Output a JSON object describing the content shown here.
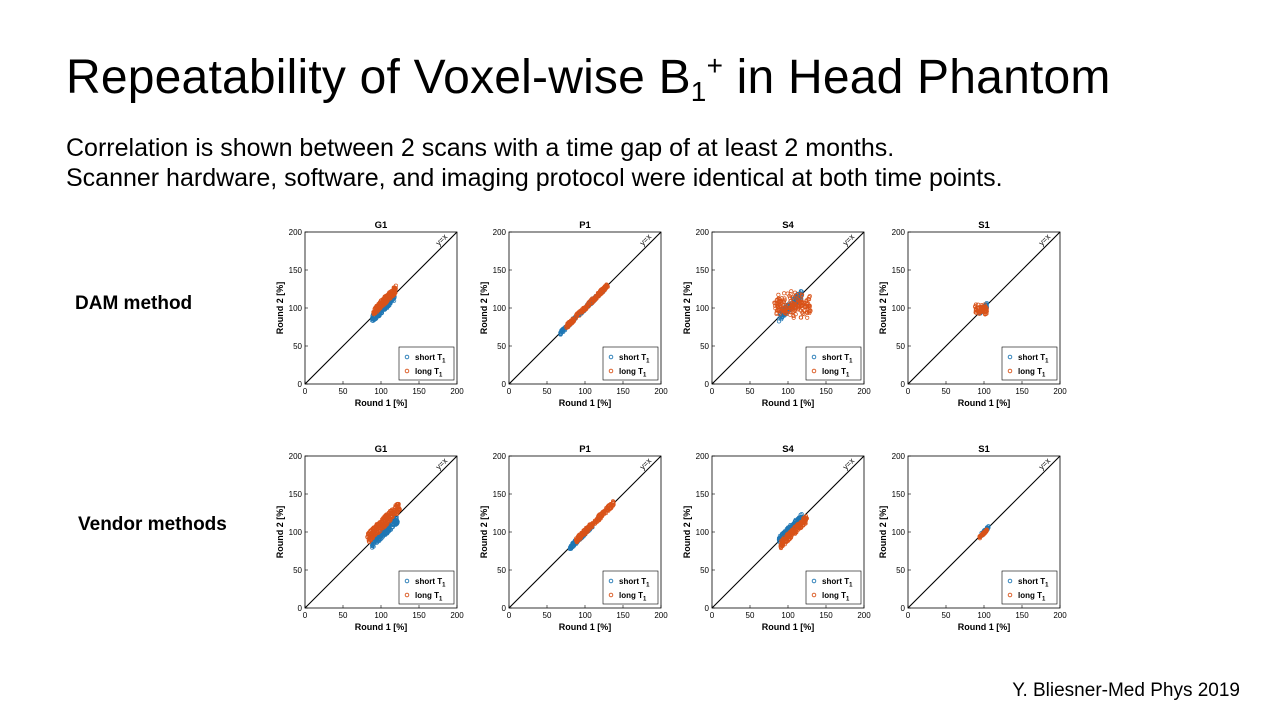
{
  "slide": {
    "title_main": "Repeatability of Voxel-wise B",
    "title_sub": "1",
    "title_sup": "+",
    "title_rest": " in Head Phantom",
    "subtitle_line1": "Correlation is shown between 2 scans with a time gap of at least 2 months.",
    "subtitle_line2": "Scanner hardware, software, and imaging protocol were identical at both time points.",
    "row_labels": [
      "DAM method",
      "Vendor methods"
    ],
    "citation": "Y. Bliesner-Med Phys 2019"
  },
  "colors": {
    "short_T1": "#1f77b4",
    "long_T1": "#d95319",
    "identity_line": "#000000"
  },
  "chart_data": [
    {
      "type": "scatter",
      "row": "DAM method",
      "title": "G1",
      "xlabel": "Round 1 [%]",
      "ylabel": "Round 2 [%]",
      "xlim": [
        0,
        200
      ],
      "ylim": [
        0,
        200
      ],
      "xticks": [
        0,
        50,
        100,
        150,
        200
      ],
      "yticks": [
        0,
        50,
        100,
        150,
        200
      ],
      "annotation": "y=x",
      "legend": {
        "placement": "bottom-right",
        "entries": [
          {
            "label": "short T",
            "sub": "1"
          },
          {
            "label": "long T",
            "sub": "1"
          }
        ]
      },
      "series": [
        {
          "name": "short T1",
          "x_range": [
            88,
            118
          ],
          "band": [
            -8,
            2
          ],
          "count": 180
        },
        {
          "name": "long T1",
          "x_range": [
            90,
            120
          ],
          "band": [
            0,
            10
          ],
          "count": 180
        }
      ]
    },
    {
      "type": "scatter",
      "row": "DAM method",
      "title": "P1",
      "xlabel": "Round 1 [%]",
      "ylabel": "Round 2 [%]",
      "xlim": [
        0,
        200
      ],
      "ylim": [
        0,
        200
      ],
      "xticks": [
        0,
        50,
        100,
        150,
        200
      ],
      "yticks": [
        0,
        50,
        100,
        150,
        200
      ],
      "annotation": "y=x",
      "legend": {
        "placement": "bottom-right",
        "entries": [
          {
            "label": "short T",
            "sub": "1"
          },
          {
            "label": "long T",
            "sub": "1"
          }
        ]
      },
      "series": [
        {
          "name": "short T1",
          "x_range": [
            67,
            128
          ],
          "band": [
            -3,
            2
          ],
          "count": 160
        },
        {
          "name": "long T1",
          "x_range": [
            75,
            130
          ],
          "band": [
            -3,
            3
          ],
          "count": 180
        }
      ]
    },
    {
      "type": "scatter",
      "row": "DAM method",
      "title": "S4",
      "xlabel": "Round 1 [%]",
      "ylabel": "Round 2 [%]",
      "xlim": [
        0,
        200
      ],
      "ylim": [
        0,
        200
      ],
      "xticks": [
        0,
        50,
        100,
        150,
        200
      ],
      "yticks": [
        0,
        50,
        100,
        150,
        200
      ],
      "annotation": "y=x",
      "legend": {
        "placement": "bottom-right",
        "entries": [
          {
            "label": "short T",
            "sub": "1"
          },
          {
            "label": "long T",
            "sub": "1"
          }
        ]
      },
      "series": [
        {
          "name": "short T1",
          "x_range": [
            88,
            118
          ],
          "band": [
            -6,
            6
          ],
          "count": 120
        },
        {
          "name": "long T1",
          "x_range": [
            82,
            130
          ],
          "center_y": 103,
          "y_spread": 22,
          "count": 170
        }
      ]
    },
    {
      "type": "scatter",
      "row": "DAM method",
      "title": "S1",
      "xlabel": "Round 1 [%]",
      "ylabel": "Round 2 [%]",
      "xlim": [
        0,
        200
      ],
      "ylim": [
        0,
        200
      ],
      "xticks": [
        0,
        50,
        100,
        150,
        200
      ],
      "yticks": [
        0,
        50,
        100,
        150,
        200
      ],
      "annotation": "y=x",
      "legend": {
        "placement": "bottom-right",
        "entries": [
          {
            "label": "short T",
            "sub": "1"
          },
          {
            "label": "long T",
            "sub": "1"
          }
        ]
      },
      "series": [
        {
          "name": "short T1",
          "x_range": [
            94,
            104
          ],
          "band": [
            -3,
            3
          ],
          "count": 40
        },
        {
          "name": "long T1",
          "x_range": [
            88,
            104
          ],
          "center_y": 97,
          "y_spread": 10,
          "count": 60
        }
      ]
    },
    {
      "type": "scatter",
      "row": "Vendor methods",
      "title": "G1",
      "xlabel": "Round 1 [%]",
      "ylabel": "Round 2 [%]",
      "xlim": [
        0,
        200
      ],
      "ylim": [
        0,
        200
      ],
      "xticks": [
        0,
        50,
        100,
        150,
        200
      ],
      "yticks": [
        0,
        50,
        100,
        150,
        200
      ],
      "annotation": "y=x",
      "legend": {
        "placement": "bottom-right",
        "entries": [
          {
            "label": "short T",
            "sub": "1"
          },
          {
            "label": "long T",
            "sub": "1"
          }
        ]
      },
      "series": [
        {
          "name": "short T1",
          "x_range": [
            88,
            122
          ],
          "band": [
            -10,
            0
          ],
          "count": 160
        },
        {
          "name": "long T1",
          "x_range": [
            82,
            125
          ],
          "band": [
            2,
            16
          ],
          "count": 230
        }
      ]
    },
    {
      "type": "scatter",
      "row": "Vendor methods",
      "title": "P1",
      "xlabel": "Round 1 [%]",
      "ylabel": "Round 2 [%]",
      "xlim": [
        0,
        200
      ],
      "ylim": [
        0,
        200
      ],
      "xticks": [
        0,
        50,
        100,
        150,
        200
      ],
      "yticks": [
        0,
        50,
        100,
        150,
        200
      ],
      "annotation": "y=x",
      "legend": {
        "placement": "bottom-right",
        "entries": [
          {
            "label": "short T",
            "sub": "1"
          },
          {
            "label": "long T",
            "sub": "1"
          }
        ]
      },
      "series": [
        {
          "name": "short T1",
          "x_range": [
            80,
            110
          ],
          "band": [
            -4,
            2
          ],
          "count": 140
        },
        {
          "name": "long T1",
          "x_range": [
            88,
            138
          ],
          "band": [
            -3,
            4
          ],
          "count": 200
        }
      ]
    },
    {
      "type": "scatter",
      "row": "Vendor methods",
      "title": "S4",
      "xlabel": "Round 1 [%]",
      "ylabel": "Round 2 [%]",
      "xlim": [
        0,
        200
      ],
      "ylim": [
        0,
        200
      ],
      "xticks": [
        0,
        50,
        100,
        150,
        200
      ],
      "yticks": [
        0,
        50,
        100,
        150,
        200
      ],
      "annotation": "y=x",
      "legend": {
        "placement": "bottom-right",
        "entries": [
          {
            "label": "short T",
            "sub": "1"
          },
          {
            "label": "long T",
            "sub": "1"
          }
        ]
      },
      "series": [
        {
          "name": "short T1",
          "x_range": [
            88,
            118
          ],
          "band": [
            -2,
            6
          ],
          "count": 150
        },
        {
          "name": "long T1",
          "x_range": [
            90,
            125
          ],
          "band": [
            -12,
            -2
          ],
          "count": 180
        }
      ]
    },
    {
      "type": "scatter",
      "row": "Vendor methods",
      "title": "S1",
      "xlabel": "Round 1 [%]",
      "ylabel": "Round 2 [%]",
      "xlim": [
        0,
        200
      ],
      "ylim": [
        0,
        200
      ],
      "xticks": [
        0,
        50,
        100,
        150,
        200
      ],
      "yticks": [
        0,
        50,
        100,
        150,
        200
      ],
      "annotation": "y=x",
      "legend": {
        "placement": "bottom-right",
        "entries": [
          {
            "label": "short T",
            "sub": "1"
          },
          {
            "label": "long T",
            "sub": "1"
          }
        ]
      },
      "series": [
        {
          "name": "short T1",
          "x_range": [
            96,
            106
          ],
          "band": [
            -2,
            2
          ],
          "count": 40
        },
        {
          "name": "long T1",
          "x_range": [
            94,
            104
          ],
          "band": [
            -3,
            0
          ],
          "count": 40
        }
      ]
    }
  ]
}
